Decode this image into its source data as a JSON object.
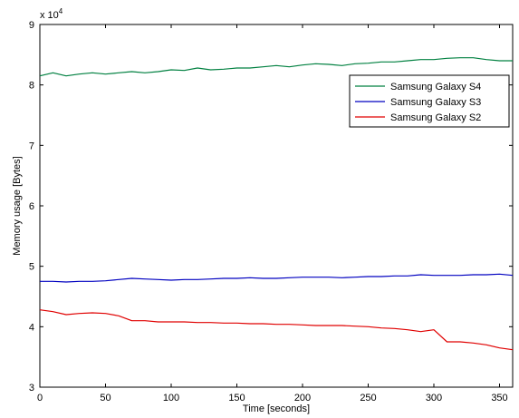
{
  "chart_data": {
    "type": "line",
    "xlabel": "Time [seconds]",
    "ylabel": "Memory usage [Bytes]",
    "y_exponent_label": "x 10",
    "y_exponent_power": "4",
    "xlim": [
      0,
      360
    ],
    "ylim": [
      3,
      9
    ],
    "x_ticks": [
      0,
      50,
      100,
      150,
      200,
      250,
      300,
      350
    ],
    "y_ticks": [
      3,
      4,
      5,
      6,
      7,
      8,
      9
    ],
    "grid": false,
    "legend_position": "top-right",
    "x": [
      0,
      10,
      20,
      30,
      40,
      50,
      60,
      70,
      80,
      90,
      100,
      110,
      120,
      130,
      140,
      150,
      160,
      170,
      180,
      190,
      200,
      210,
      220,
      230,
      240,
      250,
      260,
      270,
      280,
      290,
      300,
      310,
      320,
      330,
      340,
      350,
      360
    ],
    "series": [
      {
        "name": "Samsung Galaxy S4",
        "color": "#008040",
        "values": [
          8.15,
          8.2,
          8.15,
          8.18,
          8.2,
          8.18,
          8.2,
          8.22,
          8.2,
          8.22,
          8.25,
          8.24,
          8.28,
          8.25,
          8.26,
          8.28,
          8.28,
          8.3,
          8.32,
          8.3,
          8.33,
          8.35,
          8.34,
          8.32,
          8.35,
          8.36,
          8.38,
          8.38,
          8.4,
          8.42,
          8.42,
          8.44,
          8.45,
          8.45,
          8.42,
          8.4,
          8.4
        ]
      },
      {
        "name": "Samsung Galaxy S3",
        "color": "#0000c0",
        "values": [
          4.75,
          4.75,
          4.74,
          4.75,
          4.75,
          4.76,
          4.78,
          4.8,
          4.79,
          4.78,
          4.77,
          4.78,
          4.78,
          4.79,
          4.8,
          4.8,
          4.81,
          4.8,
          4.8,
          4.81,
          4.82,
          4.82,
          4.82,
          4.81,
          4.82,
          4.83,
          4.83,
          4.84,
          4.84,
          4.86,
          4.85,
          4.85,
          4.85,
          4.86,
          4.86,
          4.87,
          4.85
        ]
      },
      {
        "name": "Samsung Galaxy S2",
        "color": "#e00000",
        "values": [
          4.28,
          4.25,
          4.2,
          4.22,
          4.23,
          4.22,
          4.18,
          4.1,
          4.1,
          4.08,
          4.08,
          4.08,
          4.07,
          4.07,
          4.06,
          4.06,
          4.05,
          4.05,
          4.04,
          4.04,
          4.03,
          4.02,
          4.02,
          4.02,
          4.01,
          4.0,
          3.98,
          3.97,
          3.95,
          3.92,
          3.95,
          3.75,
          3.75,
          3.73,
          3.7,
          3.65,
          3.62
        ]
      }
    ]
  }
}
